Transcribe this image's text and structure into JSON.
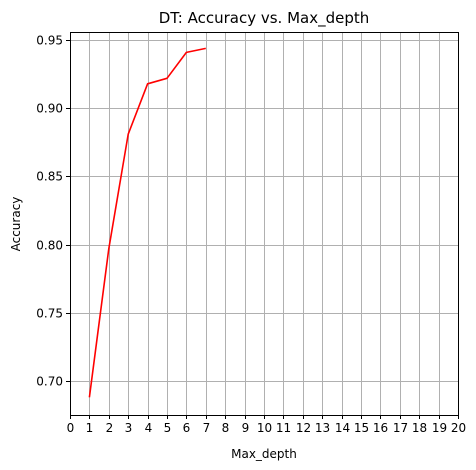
{
  "chart_data": {
    "type": "line",
    "title": "DT: Accuracy vs. Max_depth",
    "xlabel": "Max_depth",
    "ylabel": "Accuracy",
    "xlim": [
      0,
      20
    ],
    "ylim": [
      0.675,
      0.956
    ],
    "xticks": [
      0,
      1,
      2,
      3,
      4,
      5,
      6,
      7,
      8,
      9,
      10,
      11,
      12,
      13,
      14,
      15,
      16,
      17,
      18,
      19,
      20
    ],
    "xtick_labels": [
      "0",
      "1",
      "2",
      "3",
      "4",
      "5",
      "6",
      "7",
      "8",
      "9",
      "10",
      "11",
      "12",
      "13",
      "14",
      "15",
      "16",
      "17",
      "18",
      "19",
      "20"
    ],
    "yticks": [
      0.7,
      0.75,
      0.8,
      0.85,
      0.9,
      0.95
    ],
    "ytick_labels": [
      "0.70",
      "0.75",
      "0.80",
      "0.85",
      "0.90",
      "0.95"
    ],
    "grid": true,
    "series": [
      {
        "color": "#ff0000",
        "x": [
          1,
          2,
          3,
          4,
          5,
          6,
          7
        ],
        "y": [
          0.688,
          0.797,
          0.881,
          0.918,
          0.922,
          0.941,
          0.944
        ]
      }
    ]
  }
}
